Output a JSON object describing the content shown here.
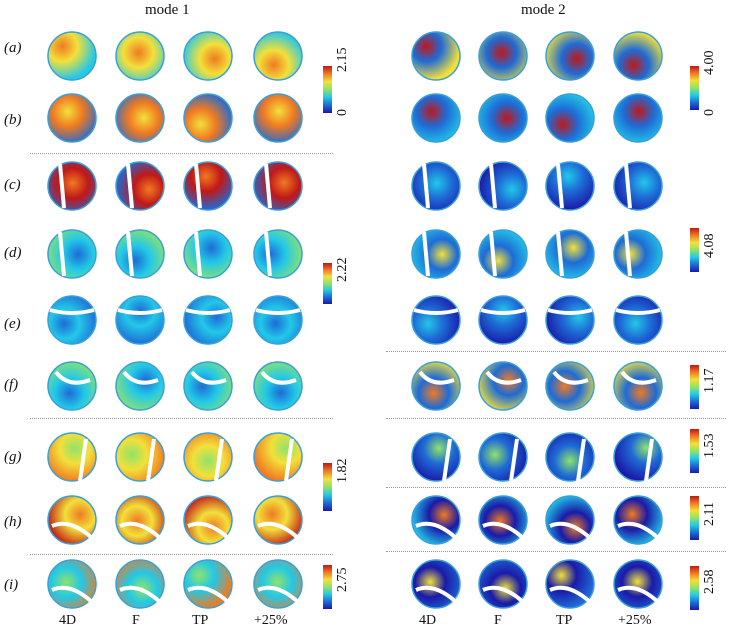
{
  "mode_titles": [
    "mode 1",
    "mode 2"
  ],
  "row_labels": [
    "(a)",
    "(b)",
    "(c)",
    "(d)",
    "(e)",
    "(f)",
    "(g)",
    "(h)",
    "(i)"
  ],
  "column_labels": [
    "4D",
    "F",
    "TP",
    "+25%"
  ],
  "colorbars": {
    "left_ab_max": "2.15",
    "left_ab_min": "0",
    "left_cdef_max": "2.22",
    "left_ghi_max": "1.82",
    "left_i_max": "2.75",
    "right_ab_max": "4.00",
    "right_ab_min": "0",
    "right_cde_max": "4.08",
    "right_f_max": "1.17",
    "right_g_max": "1.53",
    "right_h_max": "2.11",
    "right_i_max": "2.58"
  },
  "colormap": [
    "#1a1aa8",
    "#1e6bd6",
    "#22c8e8",
    "#8ee36a",
    "#f2e03a",
    "#f07a22",
    "#c01818"
  ]
}
